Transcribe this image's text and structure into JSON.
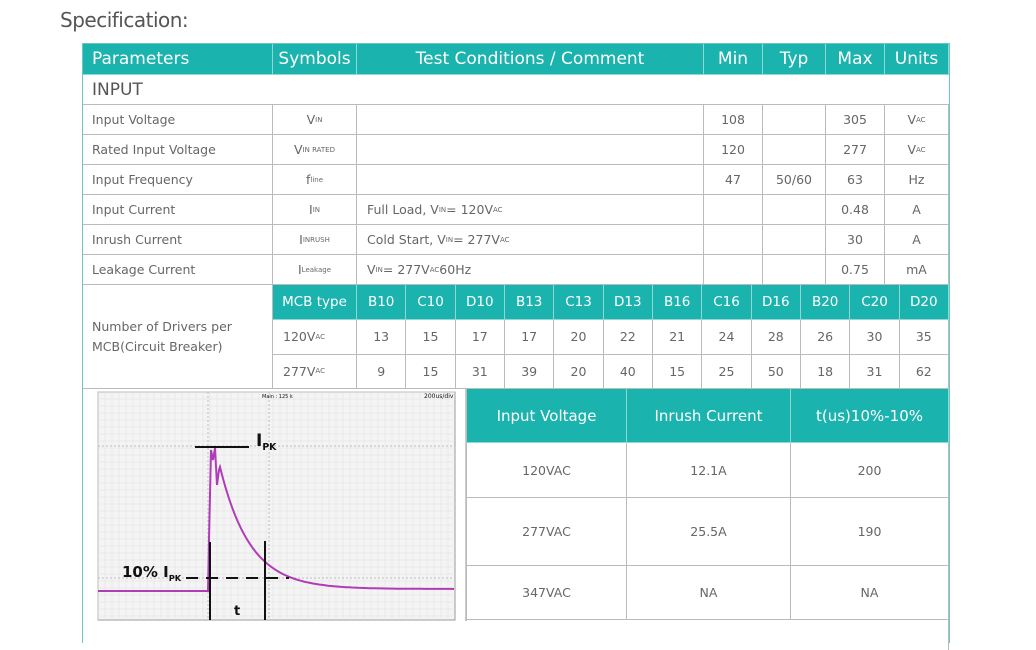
{
  "title": "Specification:",
  "header": [
    "Parameters",
    "Symbols",
    "Test Conditions / Comment",
    "Min",
    "Typ",
    "Max",
    "Units"
  ],
  "section": "INPUT",
  "rows": [
    {
      "param": "Input Voltage",
      "symbol": [
        [
          "V",
          ""
        ],
        [
          "",
          "IN"
        ]
      ],
      "cond": [],
      "min": "108",
      "typ": "",
      "max": "305",
      "units": [
        [
          "V",
          ""
        ],
        [
          "",
          "AC"
        ]
      ]
    },
    {
      "param": "Rated Input Voltage",
      "symbol": [
        [
          "V",
          ""
        ],
        [
          "",
          "IN RATED"
        ]
      ],
      "cond": [],
      "min": "120",
      "typ": "",
      "max": "277",
      "units": [
        [
          "V",
          ""
        ],
        [
          "",
          "AC"
        ]
      ]
    },
    {
      "param": "Input Frequency",
      "symbol": [
        [
          "f",
          ""
        ],
        [
          "",
          "line"
        ]
      ],
      "cond": [],
      "min": "47",
      "typ": "50/60",
      "max": "63",
      "units": [
        [
          "Hz",
          ""
        ]
      ]
    },
    {
      "param": "Input Current",
      "symbol": [
        [
          "I",
          ""
        ],
        [
          "",
          "IN"
        ]
      ],
      "cond": [
        [
          "Full Load, V",
          ""
        ],
        [
          "",
          "IN"
        ],
        [
          " = 120V",
          ""
        ],
        [
          "",
          "AC"
        ]
      ],
      "min": "",
      "typ": "",
      "max": "0.48",
      "units": [
        [
          "A",
          ""
        ]
      ]
    },
    {
      "param": "Inrush Current",
      "symbol": [
        [
          "I",
          ""
        ],
        [
          "",
          "INRUSH"
        ]
      ],
      "cond": [
        [
          "Cold Start, V",
          ""
        ],
        [
          "",
          "IN"
        ],
        [
          " = 277V",
          ""
        ],
        [
          "",
          "AC"
        ]
      ],
      "min": "",
      "typ": "",
      "max": "30",
      "units": [
        [
          "A",
          ""
        ]
      ]
    },
    {
      "param": "Leakage Current",
      "symbol": [
        [
          "I",
          ""
        ],
        [
          "",
          "Leakage"
        ]
      ],
      "cond": [
        [
          "V",
          ""
        ],
        [
          "",
          "IN"
        ],
        [
          " = 277V",
          ""
        ],
        [
          "",
          "AC"
        ],
        [
          " 60Hz",
          ""
        ]
      ],
      "min": "",
      "typ": "",
      "max": "0.75",
      "units": [
        [
          "mA",
          ""
        ]
      ]
    }
  ],
  "mcb": {
    "label": "Number of Drivers per MCB(Circuit Breaker)",
    "header": "MCB type",
    "types": [
      "B10",
      "C10",
      "D10",
      "B13",
      "C13",
      "D13",
      "B16",
      "C16",
      "D16",
      "B20",
      "C20",
      "D20"
    ],
    "rows": [
      {
        "label": [
          [
            "120V",
            ""
          ],
          [
            "",
            "AC"
          ]
        ],
        "values": [
          "13",
          "15",
          "17",
          "17",
          "20",
          "22",
          "21",
          "24",
          "28",
          "26",
          "30",
          "35"
        ]
      },
      {
        "label": [
          [
            "277V",
            ""
          ],
          [
            "",
            "AC"
          ]
        ],
        "values": [
          "9",
          "15",
          "31",
          "39",
          "20",
          "40",
          "15",
          "25",
          "50",
          "18",
          "31",
          "62"
        ]
      }
    ]
  },
  "scope": {
    "top_label": "Main : 125 k",
    "scale": "200us/div",
    "ipk": "I",
    "ipk_sub": "PK",
    "ten": "10% I",
    "ten_sub": "PK",
    "t": "t",
    "trace_color": "#b03cb8"
  },
  "inrush": {
    "header": [
      "Input Voltage",
      "Inrush Current",
      "t(us)10%-10%"
    ],
    "rows": [
      [
        "120VAC",
        "12.1A",
        "200"
      ],
      [
        "277VAC",
        "25.5A",
        "190"
      ],
      [
        "347VAC",
        "NA",
        "NA"
      ]
    ]
  },
  "colors": {
    "accent": "#1ab3ae"
  }
}
